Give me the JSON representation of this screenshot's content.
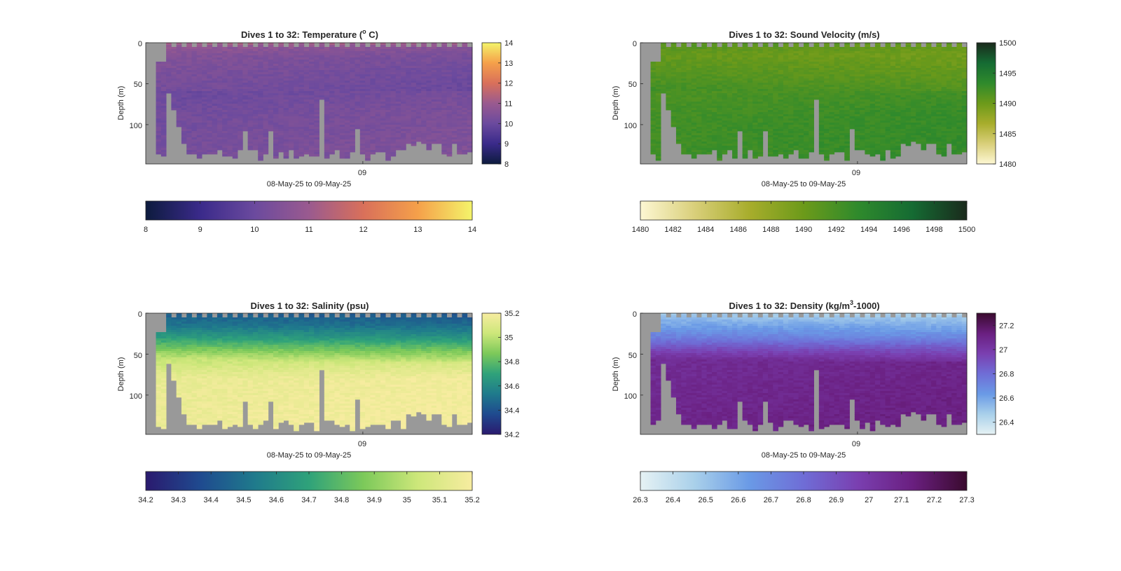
{
  "figure": {
    "background": "#ffffff",
    "nan_color": "#999999",
    "depth_axis_label": "Depth (m)",
    "time_axis_label": "08-May-25 to 09-May-25",
    "time_tick": "09"
  },
  "chart_data": [
    {
      "type": "heatmap",
      "variable": "temperature",
      "title_prefix": "Dives 1 to 32: Temperature (",
      "title_sup": "o",
      "title_suffix": " C)",
      "ylabel": "Depth (m)",
      "xlabel": "08-May-25 to 09-May-25",
      "x_tick_labels": [
        "09"
      ],
      "y_tick_labels": [
        "0",
        "50",
        "100"
      ],
      "ylim": [
        0,
        148
      ],
      "n_columns": 64,
      "clim": [
        8,
        14
      ],
      "colorbar_ticks": [
        "8",
        "9",
        "10",
        "11",
        "12",
        "13",
        "14"
      ],
      "colormap": [
        "#0d1b3e",
        "#3a2a8a",
        "#6b4a9e",
        "#9a5a8f",
        "#d9705a",
        "#f5a04a",
        "#f4f46a"
      ],
      "profile_by_depth": [
        {
          "depth": 0,
          "value": 11.2
        },
        {
          "depth": 5,
          "value": 10.7
        },
        {
          "depth": 15,
          "value": 10.4
        },
        {
          "depth": 40,
          "value": 10.2
        },
        {
          "depth": 60,
          "value": 10.1
        },
        {
          "depth": 90,
          "value": 10.25
        },
        {
          "depth": 148,
          "value": 10.35
        }
      ]
    },
    {
      "type": "heatmap",
      "variable": "sound_velocity",
      "title": "Dives 1 to 32: Sound Velocity (m/s)",
      "ylabel": "Depth (m)",
      "xlabel": "08-May-25 to 09-May-25",
      "x_tick_labels": [
        "09"
      ],
      "y_tick_labels": [
        "0",
        "50",
        "100"
      ],
      "ylim": [
        0,
        148
      ],
      "n_columns": 64,
      "clim": [
        1480,
        1500
      ],
      "colorbar_ticks": [
        "1480",
        "1485",
        "1490",
        "1495",
        "1500"
      ],
      "horizontal_colorbar_ticks": [
        "1480",
        "1482",
        "1484",
        "1486",
        "1488",
        "1490",
        "1492",
        "1494",
        "1496",
        "1498",
        "1500"
      ],
      "colormap": [
        "#fdf7d3",
        "#d9cf7a",
        "#a8ad2c",
        "#6c9a1a",
        "#2f8a2c",
        "#156b33",
        "#1a2a1c"
      ],
      "profile_by_depth": [
        {
          "depth": 0,
          "value": 1491.0
        },
        {
          "depth": 15,
          "value": 1490.0
        },
        {
          "depth": 40,
          "value": 1491.0
        },
        {
          "depth": 60,
          "value": 1492.0
        },
        {
          "depth": 90,
          "value": 1492.6
        },
        {
          "depth": 148,
          "value": 1492.9
        }
      ]
    },
    {
      "type": "heatmap",
      "variable": "salinity",
      "title": "Dives 1 to 32: Salinity (psu)",
      "ylabel": "Depth (m)",
      "xlabel": "08-May-25 to 09-May-25",
      "x_tick_labels": [
        "09"
      ],
      "y_tick_labels": [
        "0",
        "50",
        "100"
      ],
      "ylim": [
        0,
        148
      ],
      "n_columns": 64,
      "clim": [
        34.2,
        35.2
      ],
      "colorbar_ticks": [
        "34.2",
        "34.4",
        "34.6",
        "34.8",
        "35",
        "35.2"
      ],
      "horizontal_colorbar_ticks": [
        "34.2",
        "34.3",
        "34.4",
        "34.5",
        "34.6",
        "34.7",
        "34.8",
        "34.9",
        "35",
        "35.1",
        "35.2"
      ],
      "colormap": [
        "#2a1a6e",
        "#1f4a8f",
        "#1f7a8c",
        "#2fa27a",
        "#7cc95a",
        "#cde77a",
        "#f7eca0"
      ],
      "profile_by_depth": [
        {
          "depth": 0,
          "value": 34.42
        },
        {
          "depth": 15,
          "value": 34.5
        },
        {
          "depth": 30,
          "value": 34.66
        },
        {
          "depth": 45,
          "value": 34.86
        },
        {
          "depth": 60,
          "value": 35.05
        },
        {
          "depth": 80,
          "value": 35.16
        },
        {
          "depth": 148,
          "value": 35.18
        }
      ]
    },
    {
      "type": "heatmap",
      "variable": "density",
      "title_prefix": "Dives 1 to 32: Density (kg/m",
      "title_sup": "3",
      "title_suffix": "-1000)",
      "ylabel": "Depth (m)",
      "xlabel": "08-May-25 to 09-May-25",
      "x_tick_labels": [
        "09"
      ],
      "y_tick_labels": [
        "0",
        "50",
        "100"
      ],
      "ylim": [
        0,
        148
      ],
      "n_columns": 64,
      "clim": [
        26.3,
        27.3
      ],
      "colorbar_ticks": [
        "26.4",
        "26.6",
        "26.8",
        "27",
        "27.2"
      ],
      "horizontal_colorbar_ticks": [
        "26.3",
        "26.4",
        "26.5",
        "26.6",
        "26.7",
        "26.8",
        "26.9",
        "27",
        "27.1",
        "27.2",
        "27.3"
      ],
      "colormap": [
        "#e6f2f4",
        "#a9d0ea",
        "#6a9ae6",
        "#6f6dd6",
        "#7a3fb0",
        "#6a1f80",
        "#3a0a2e"
      ],
      "profile_by_depth": [
        {
          "depth": 0,
          "value": 26.45
        },
        {
          "depth": 10,
          "value": 26.55
        },
        {
          "depth": 30,
          "value": 26.72
        },
        {
          "depth": 45,
          "value": 26.92
        },
        {
          "depth": 60,
          "value": 27.08
        },
        {
          "depth": 148,
          "value": 27.12
        }
      ]
    }
  ]
}
